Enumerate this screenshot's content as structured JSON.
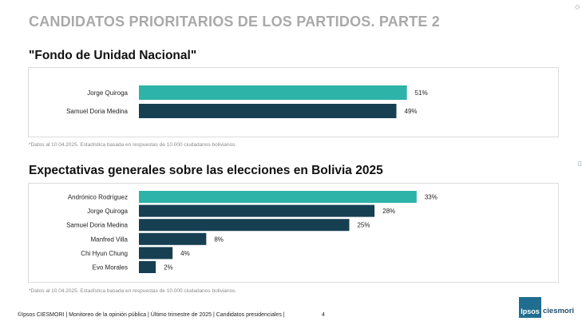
{
  "page": {
    "title": "CANDIDATOS PRIORITARIOS DE LOS PARTIDOS. PARTE 2",
    "footer": "©Ipsos CIESMORI | Monitoreo de la opinión pública | Último trimestre de 2025 | Candidatos presidenciales |",
    "page_number": "4",
    "logo": {
      "ipsos": "Ipsos",
      "ciesmori": "ciesmori"
    }
  },
  "colors": {
    "highlight": "#2db3a8",
    "dark": "#163f52"
  },
  "chart_data": [
    {
      "type": "bar",
      "orientation": "horizontal",
      "title": "\"Fondo de Unidad Nacional\"",
      "categories": [
        "Jorge Quiroga",
        "Samuel Doria Medina"
      ],
      "values": [
        51,
        49
      ],
      "value_labels": [
        "51%",
        "49%"
      ],
      "highlight_index": 0,
      "xlim": [
        0,
        55
      ],
      "footnote": "*Datos al 10.04.2025. Estadística basada en respuestas de 10.000 ciudadanos bolivianos."
    },
    {
      "type": "bar",
      "orientation": "horizontal",
      "title": "Expectativas generales sobre las elecciones en Bolivia 2025",
      "categories": [
        "Andrónico Rodríguez",
        "Jorge Quiroga",
        "Samuel Doria Medina",
        "Manfred Villa",
        "Chi Hyun Chung",
        "Evo Morales"
      ],
      "values": [
        33,
        28,
        25,
        8,
        4,
        2
      ],
      "value_labels": [
        "33%",
        "28%",
        "25%",
        "8%",
        "4%",
        "2%"
      ],
      "highlight_index": 0,
      "xlim": [
        0,
        37
      ],
      "footnote": "*Datos al 10.04.2025. Estadística basada en respuestas de 10.000 ciudadanos bolivianos."
    }
  ]
}
